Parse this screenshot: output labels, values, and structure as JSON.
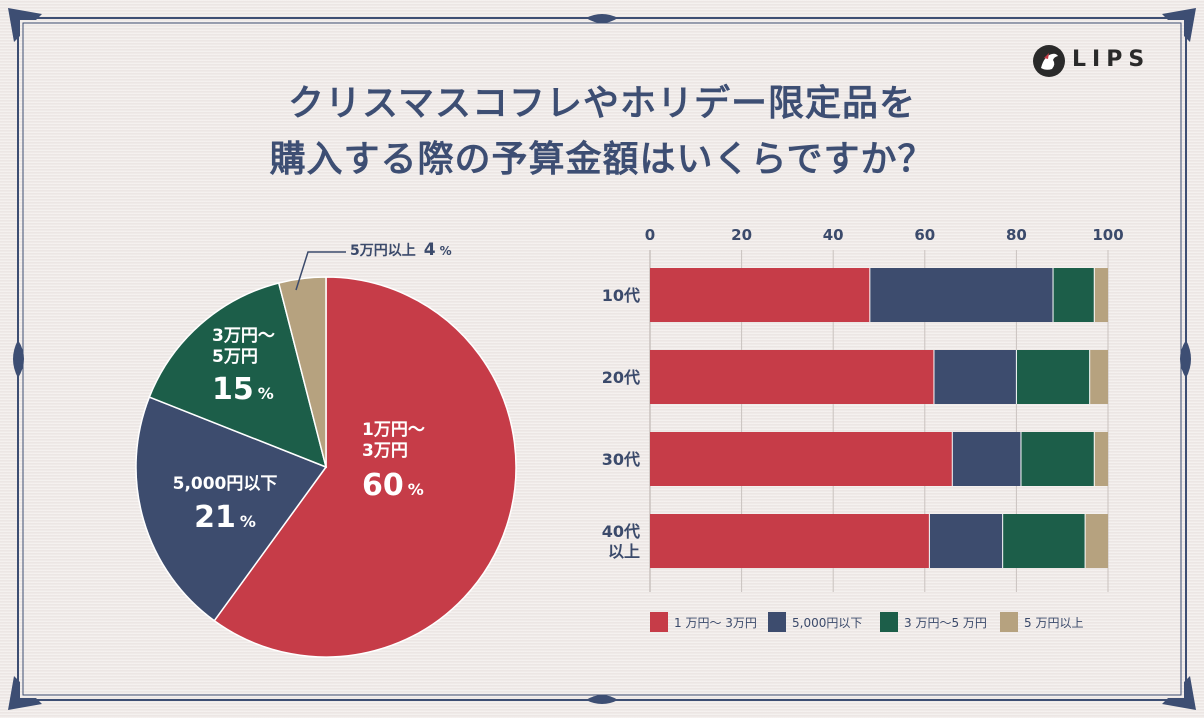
{
  "title": {
    "line1": "クリスマスコフレやホリデー限定品を",
    "line2": "購入する際の予算金額はいくらですか？"
  },
  "brand": {
    "logo_text": "LIPS",
    "colors": {
      "logo_dark": "#2a2a2a"
    }
  },
  "pie": {
    "slices": [
      {
        "name_lines": [
          "1万円〜",
          "3万円"
        ],
        "pct": "60",
        "unit": "%",
        "value": 60,
        "color": "#c63c48"
      },
      {
        "name_lines": [
          "5,000円以下"
        ],
        "pct": "21",
        "unit": "%",
        "value": 21,
        "color": "#3d4c6e"
      },
      {
        "name_lines": [
          "3万円〜",
          "5万円"
        ],
        "pct": "15",
        "unit": "%",
        "value": 15,
        "color": "#1c5e49"
      },
      {
        "name_lines": [
          "5万円以上"
        ],
        "pct": "4",
        "unit": "%",
        "value": 4,
        "color": "#b6a27f"
      }
    ]
  },
  "chart_data": [
    {
      "type": "pie",
      "title": "クリスマスコフレやホリデー限定品を購入する際の予算金額はいくらですか？",
      "categories": [
        "1万円〜3万円",
        "5,000円以下",
        "3万円〜5万円",
        "5万円以上"
      ],
      "values": [
        60,
        21,
        15,
        4
      ]
    },
    {
      "type": "bar",
      "orientation": "horizontal",
      "stacked": true,
      "categories": [
        "10代",
        "20代",
        "30代",
        "40代\n以上"
      ],
      "category_lines": [
        [
          "10代"
        ],
        [
          "20代"
        ],
        [
          "30代"
        ],
        [
          "40代",
          "以上"
        ]
      ],
      "xlim": [
        0,
        100
      ],
      "xticks": [
        "0",
        "20",
        "40",
        "60",
        "80",
        "100"
      ],
      "grid": true,
      "legend_position": "bottom",
      "series": [
        {
          "name": "1 万円〜 3万円",
          "color": "#c63c48",
          "values": [
            48,
            62,
            66,
            61
          ]
        },
        {
          "name": "5,000円以下",
          "color": "#3d4c6e",
          "values": [
            40,
            18,
            15,
            16
          ]
        },
        {
          "name": "3 万円〜5 万円",
          "color": "#1c5e49",
          "values": [
            9,
            16,
            16,
            18
          ]
        },
        {
          "name": "5 万円以上",
          "color": "#b6a27f",
          "values": [
            3,
            4,
            3,
            5
          ]
        }
      ]
    }
  ],
  "colors": {
    "background": "#efe9e6",
    "frame": "#3d4e73",
    "title": "#3d4e73",
    "axis_text": "#3b4a6b",
    "grid": "#c9c2bf"
  }
}
